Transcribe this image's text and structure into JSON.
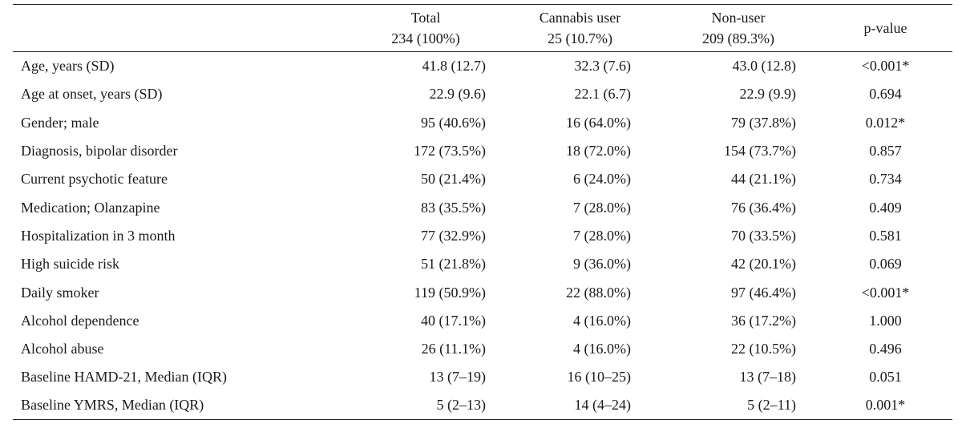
{
  "columns": [
    {
      "key": "label",
      "line1": "",
      "line2": ""
    },
    {
      "key": "total",
      "line1": "Total",
      "line2": "234 (100%)"
    },
    {
      "key": "cannabis",
      "line1": "Cannabis user",
      "line2": "25 (10.7%)"
    },
    {
      "key": "nonuser",
      "line1": "Non-user",
      "line2": "209 (89.3%)"
    },
    {
      "key": "pvalue",
      "line1": "p-value",
      "line2": ""
    }
  ],
  "rows": [
    {
      "label": "Age, years (SD)",
      "total": "41.8 (12.7)",
      "cannabis": "32.3 (7.6)",
      "nonuser": "43.0 (12.8)",
      "pvalue": "<0.001*"
    },
    {
      "label": "Age at onset, years (SD)",
      "total": "22.9 (9.6)",
      "cannabis": "22.1 (6.7)",
      "nonuser": "22.9 (9.9)",
      "pvalue": "0.694"
    },
    {
      "label": "Gender; male",
      "total": "95 (40.6%)",
      "cannabis": "16 (64.0%)",
      "nonuser": "79 (37.8%)",
      "pvalue": "0.012*"
    },
    {
      "label": "Diagnosis, bipolar disorder",
      "total": "172 (73.5%)",
      "cannabis": "18 (72.0%)",
      "nonuser": "154 (73.7%)",
      "pvalue": "0.857"
    },
    {
      "label": "Current psychotic feature",
      "total": "50 (21.4%)",
      "cannabis": "6 (24.0%)",
      "nonuser": "44 (21.1%)",
      "pvalue": "0.734"
    },
    {
      "label": "Medication; Olanzapine",
      "total": "83 (35.5%)",
      "cannabis": "7 (28.0%)",
      "nonuser": "76 (36.4%)",
      "pvalue": "0.409"
    },
    {
      "label": "Hospitalization in 3 month",
      "total": "77 (32.9%)",
      "cannabis": "7 (28.0%)",
      "nonuser": "70 (33.5%)",
      "pvalue": "0.581"
    },
    {
      "label": "High suicide risk",
      "total": "51 (21.8%)",
      "cannabis": "9 (36.0%)",
      "nonuser": "42 (20.1%)",
      "pvalue": "0.069"
    },
    {
      "label": "Daily smoker",
      "total": "119 (50.9%)",
      "cannabis": "22 (88.0%)",
      "nonuser": "97 (46.4%)",
      "pvalue": "<0.001*"
    },
    {
      "label": "Alcohol dependence",
      "total": "40 (17.1%)",
      "cannabis": "4 (16.0%)",
      "nonuser": "36 (17.2%)",
      "pvalue": "1.000"
    },
    {
      "label": "Alcohol abuse",
      "total": "26 (11.1%)",
      "cannabis": "4 (16.0%)",
      "nonuser": "22 (10.5%)",
      "pvalue": "0.496"
    },
    {
      "label": "Baseline HAMD-21, Median (IQR)",
      "total": "13 (7–19)",
      "cannabis": "16 (10–25)",
      "nonuser": "13 (7–18)",
      "pvalue": "0.051"
    },
    {
      "label": "Baseline YMRS, Median (IQR)",
      "total": "5 (2–13)",
      "cannabis": "14 (4–24)",
      "nonuser": "5 (2–11)",
      "pvalue": "0.001*"
    }
  ]
}
